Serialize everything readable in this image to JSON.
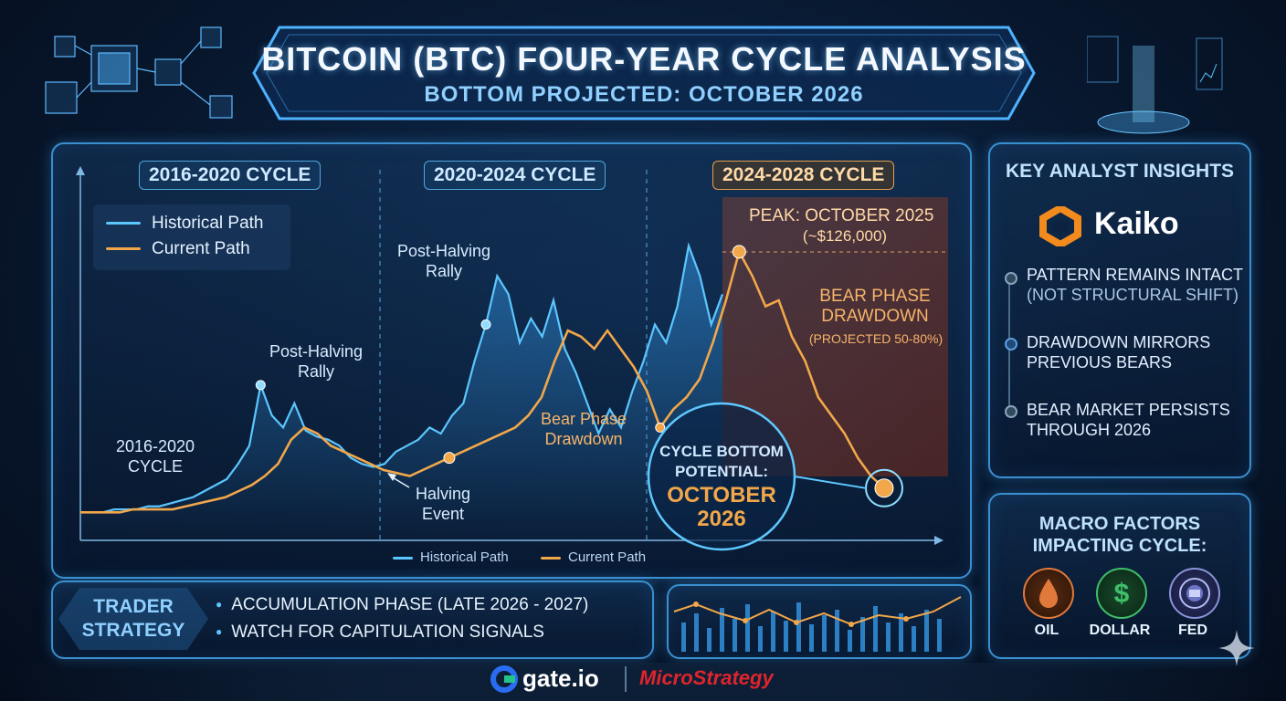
{
  "header": {
    "title": "BITCOIN (BTC) FOUR-YEAR CYCLE ANALYSIS",
    "subtitle": "BOTTOM PROJECTED: OCTOBER 2026"
  },
  "chart_data": {
    "type": "line",
    "cycles": [
      "2016-2020 CYCLE",
      "2020-2024 CYCLE",
      "2024-2028 CYCLE"
    ],
    "legend": {
      "historical": "Historical Path",
      "current": "Current Path"
    },
    "series": [
      {
        "name": "Historical Path",
        "color": "#5cc6ff",
        "values": [
          2,
          2,
          2,
          3,
          3,
          3,
          4,
          4,
          5,
          6,
          7,
          9,
          11,
          13,
          18,
          24,
          44,
          34,
          30,
          38,
          29,
          27,
          26,
          24,
          20,
          18,
          17,
          18,
          22,
          24,
          26,
          30,
          28,
          34,
          38,
          52,
          64,
          80,
          74,
          58,
          66,
          60,
          72,
          56,
          48,
          38,
          28,
          36,
          30,
          42,
          52,
          64,
          58,
          70,
          90,
          80,
          64,
          74
        ]
      },
      {
        "name": "Current Path",
        "color": "#f2a74a",
        "values": [
          2,
          2,
          2,
          2,
          3,
          3,
          3,
          3,
          4,
          5,
          6,
          7,
          9,
          11,
          14,
          18,
          26,
          30,
          28,
          24,
          22,
          20,
          18,
          16,
          15,
          14,
          16,
          18,
          20,
          22,
          24,
          26,
          28,
          30,
          34,
          40,
          52,
          62,
          60,
          56,
          62,
          56,
          50,
          42,
          30,
          36,
          40,
          46,
          58,
          72,
          88,
          80,
          70,
          72,
          60,
          52,
          40,
          34,
          28,
          20,
          14,
          10
        ]
      }
    ],
    "annotations": {
      "peak": "PEAK: OCTOBER 2025",
      "peak_price": "(~$126,000)",
      "bear_phase_title": "BEAR PHASE\nDRAWDOWN",
      "bear_phase_projection": "(PROJECTED 50-80%)",
      "post_halving_1": "Post-Halving\nRally",
      "post_halving_2": "Post-Halving\nRally",
      "cycle_label_1": "2016-2020\nCYCLE",
      "halving_event": "Halving\nEvent",
      "bear_phase_2": "Bear Phase\nDrawdown",
      "bottom_title": "CYCLE BOTTOM\nPOTENTIAL:",
      "bottom_date": "OCTOBER\n2026"
    },
    "xlabel": "",
    "ylabel": ""
  },
  "insights": {
    "title": "KEY ANALYST INSIGHTS",
    "brand": "Kaiko",
    "items": [
      {
        "main": "PATTERN REMAINS INTACT",
        "sub": "(NOT STRUCTURAL SHIFT)"
      },
      {
        "main": "DRAWDOWN MIRRORS PREVIOUS BEARS",
        "sub": ""
      },
      {
        "main": "BEAR MARKET PERSISTS THROUGH 2026",
        "sub": ""
      }
    ]
  },
  "macro": {
    "title": "MACRO FACTORS\nIMPACTING CYCLE:",
    "factors": [
      {
        "label": "OIL",
        "icon": "oil-drop-icon",
        "color": "#e0793a"
      },
      {
        "label": "DOLLAR",
        "icon": "dollar-icon",
        "color": "#3fbf6a"
      },
      {
        "label": "FED",
        "icon": "fed-seal-icon",
        "color": "#8a93d8"
      }
    ]
  },
  "strategy": {
    "label": "TRADER\nSTRATEGY",
    "items": [
      "ACCUMULATION PHASE (LATE 2026 - 2027)",
      "WATCH FOR CAPITULATION SIGNALS"
    ]
  },
  "footer": {
    "gate": "gate.io",
    "microstrategy": "MicroStrategy"
  }
}
